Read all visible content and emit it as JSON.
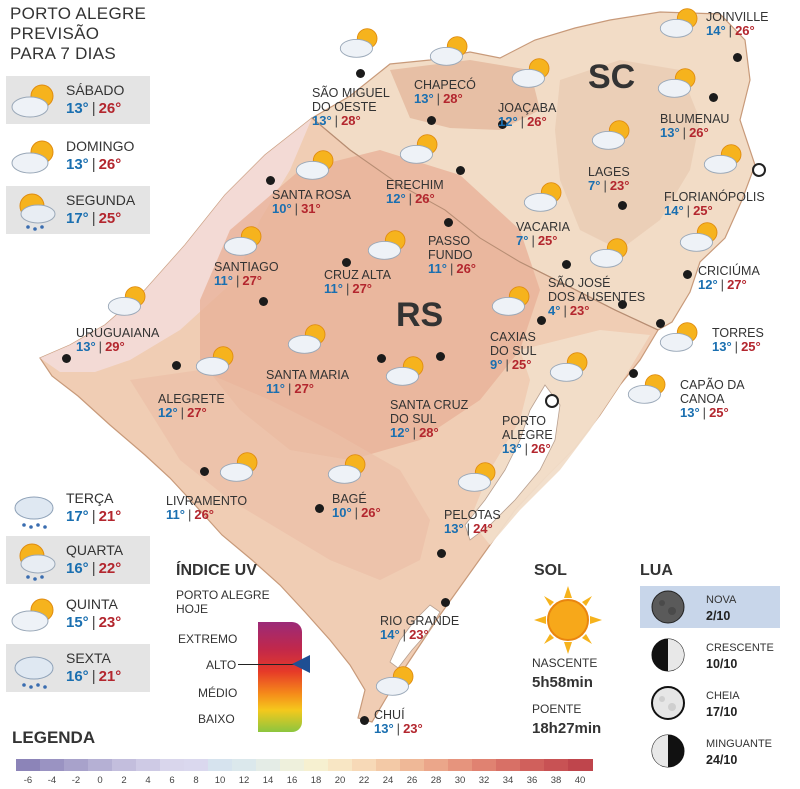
{
  "title": {
    "line1": "PORTO ALEGRE",
    "line2": "PREVISÃO",
    "line3": "PARA 7 DIAS"
  },
  "days": [
    {
      "name": "SÁBADO",
      "min": "13°",
      "max": "26°",
      "icon": "partly-cloudy-icon"
    },
    {
      "name": "DOMINGO",
      "min": "13°",
      "max": "26°",
      "icon": "partly-cloudy-icon"
    },
    {
      "name": "SEGUNDA",
      "min": "17°",
      "max": "25°",
      "icon": "sun-rain-icon"
    },
    {
      "name": "TERÇA",
      "min": "17°",
      "max": "21°",
      "icon": "rain-icon"
    },
    {
      "name": "QUARTA",
      "min": "16°",
      "max": "22°",
      "icon": "sun-rain-icon"
    },
    {
      "name": "QUINTA",
      "min": "15°",
      "max": "23°",
      "icon": "partly-cloudy-icon"
    },
    {
      "name": "SEXTA",
      "min": "16°",
      "max": "21°",
      "icon": "rain-icon"
    }
  ],
  "states": {
    "sc": "SC",
    "rs": "RS"
  },
  "cities": [
    {
      "name": "SÃO MIGUEL\nDO OESTE",
      "min": "13°",
      "max": "28°"
    },
    {
      "name": "CHAPECÓ",
      "min": "13°",
      "max": "28°"
    },
    {
      "name": "JOAÇABA",
      "min": "12°",
      "max": "26°"
    },
    {
      "name": "JOINVILLE",
      "min": "14°",
      "max": "26°"
    },
    {
      "name": "BLUMENAU",
      "min": "13°",
      "max": "26°"
    },
    {
      "name": "LAGES",
      "min": "7°",
      "max": "23°"
    },
    {
      "name": "FLORIANÓPOLIS",
      "min": "14°",
      "max": "25°"
    },
    {
      "name": "SANTA ROSA",
      "min": "10°",
      "max": "31°"
    },
    {
      "name": "ERECHIM",
      "min": "12°",
      "max": "26°"
    },
    {
      "name": "VACARIA",
      "min": "7°",
      "max": "25°"
    },
    {
      "name": "PASSO\nFUNDO",
      "min": "11°",
      "max": "26°"
    },
    {
      "name": "SANTIAGO",
      "min": "11°",
      "max": "27°"
    },
    {
      "name": "CRUZ ALTA",
      "min": "11°",
      "max": "27°"
    },
    {
      "name": "SÃO JOSÉ\nDOS AUSENTES",
      "min": "4°",
      "max": "23°"
    },
    {
      "name": "CRICIÚMA",
      "min": "12°",
      "max": "27°"
    },
    {
      "name": "URUGUAIANA",
      "min": "13°",
      "max": "29°"
    },
    {
      "name": "CAXIAS\nDO SUL",
      "min": "9°",
      "max": "25°"
    },
    {
      "name": "TORRES",
      "min": "13°",
      "max": "25°"
    },
    {
      "name": "SANTA MARIA",
      "min": "11°",
      "max": "27°"
    },
    {
      "name": "ALEGRETE",
      "min": "12°",
      "max": "27°"
    },
    {
      "name": "CAPÃO DA\nCANOA",
      "min": "13°",
      "max": "25°"
    },
    {
      "name": "SANTA CRUZ\nDO SUL",
      "min": "12°",
      "max": "28°"
    },
    {
      "name": "PORTO\nALEGRE",
      "min": "13°",
      "max": "26°"
    },
    {
      "name": "LIVRAMENTO",
      "min": "11°",
      "max": "26°"
    },
    {
      "name": "BAGÉ",
      "min": "10°",
      "max": "26°"
    },
    {
      "name": "PELOTAS",
      "min": "13°",
      "max": "24°"
    },
    {
      "name": "RIO GRANDE",
      "min": "14°",
      "max": "23°"
    },
    {
      "name": "CHUÍ",
      "min": "13°",
      "max": "23°"
    }
  ],
  "uv": {
    "title": "ÍNDICE UV",
    "subtitle1": "PORTO ALEGRE",
    "subtitle2": "HOJE",
    "levels": [
      "EXTREMO",
      "ALTO",
      "MÉDIO",
      "BAIXO"
    ],
    "current_level": "ALTO"
  },
  "sol": {
    "title": "SOL",
    "sunrise_label": "NASCENTE",
    "sunrise": "5h58min",
    "sunset_label": "POENTE",
    "sunset": "18h27min"
  },
  "lua": {
    "title": "LUA",
    "phases": [
      {
        "name": "NOVA",
        "date": "2/10",
        "icon": "new-moon-icon",
        "highlight": true
      },
      {
        "name": "CRESCENTE",
        "date": "10/10",
        "icon": "first-quarter-moon-icon",
        "highlight": false
      },
      {
        "name": "CHEIA",
        "date": "17/10",
        "icon": "full-moon-icon",
        "highlight": false
      },
      {
        "name": "MINGUANTE",
        "date": "24/10",
        "icon": "last-quarter-moon-icon",
        "highlight": false
      }
    ]
  },
  "legend": {
    "title": "LEGENDA",
    "ticks": [
      "-6",
      "-4",
      "-2",
      "0",
      "2",
      "4",
      "6",
      "8",
      "10",
      "12",
      "14",
      "16",
      "18",
      "20",
      "22",
      "24",
      "26",
      "28",
      "30",
      "32",
      "34",
      "36",
      "38",
      "40"
    ],
    "colors": [
      "#8c84b8",
      "#9a93c2",
      "#a8a2cb",
      "#b5b0d4",
      "#c3bedd",
      "#cecae5",
      "#d9d6ec",
      "#dad8ee",
      "#d6e3ee",
      "#dbe8ec",
      "#e4ece6",
      "#eef0dc",
      "#f6f0d0",
      "#f8e6c4",
      "#f7d9b7",
      "#f3c9a6",
      "#efb897",
      "#eba68a",
      "#e6947d",
      "#e08271",
      "#d87066",
      "#d0605c",
      "#c85254",
      "#bf454c"
    ]
  }
}
